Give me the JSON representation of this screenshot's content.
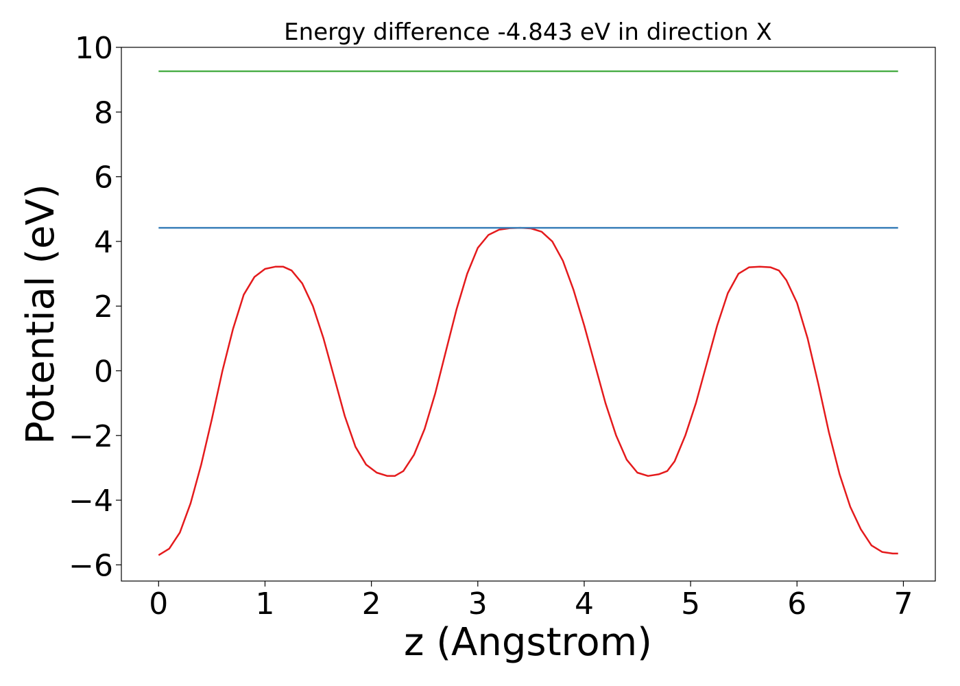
{
  "chart_data": {
    "type": "line",
    "title": "Energy difference -4.843 eV in direction X",
    "xlabel": "z (Angstrom)",
    "ylabel": "Potential (eV)",
    "xlim": [
      -0.35,
      7.3
    ],
    "ylim": [
      -6.5,
      10
    ],
    "x_ticks": [
      0,
      1,
      2,
      3,
      4,
      5,
      6,
      7
    ],
    "x_tick_labels": [
      "0",
      "1",
      "2",
      "3",
      "4",
      "5",
      "6",
      "7"
    ],
    "y_ticks": [
      -6,
      -4,
      -2,
      0,
      2,
      4,
      6,
      8,
      10
    ],
    "y_tick_labels": [
      "−6",
      "−4",
      "−2",
      "0",
      "2",
      "4",
      "6",
      "8",
      "10"
    ],
    "grid": false,
    "series": [
      {
        "color": "#e41a1c",
        "x": [
          0.0,
          0.1,
          0.2,
          0.3,
          0.4,
          0.5,
          0.6,
          0.7,
          0.8,
          0.9,
          1.0,
          1.1,
          1.17,
          1.25,
          1.35,
          1.45,
          1.55,
          1.65,
          1.75,
          1.85,
          1.95,
          2.05,
          2.15,
          2.22,
          2.3,
          2.4,
          2.5,
          2.6,
          2.7,
          2.8,
          2.9,
          3.0,
          3.1,
          3.2,
          3.3,
          3.4,
          3.5,
          3.6,
          3.7,
          3.8,
          3.9,
          4.0,
          4.1,
          4.2,
          4.3,
          4.4,
          4.5,
          4.6,
          4.7,
          4.78,
          4.85,
          4.95,
          5.05,
          5.15,
          5.25,
          5.35,
          5.45,
          5.55,
          5.65,
          5.75,
          5.83,
          5.9,
          6.0,
          6.1,
          6.2,
          6.3,
          6.4,
          6.5,
          6.6,
          6.7,
          6.8,
          6.9,
          6.95
        ],
        "y": [
          -5.7,
          -5.5,
          -5.0,
          -4.1,
          -2.9,
          -1.5,
          0.0,
          1.3,
          2.35,
          2.9,
          3.15,
          3.22,
          3.22,
          3.1,
          2.7,
          2.0,
          1.0,
          -0.2,
          -1.4,
          -2.35,
          -2.9,
          -3.15,
          -3.25,
          -3.25,
          -3.1,
          -2.6,
          -1.8,
          -0.7,
          0.6,
          1.9,
          3.0,
          3.8,
          4.2,
          4.36,
          4.41,
          4.42,
          4.4,
          4.3,
          4.0,
          3.4,
          2.5,
          1.4,
          0.2,
          -1.0,
          -2.0,
          -2.75,
          -3.15,
          -3.25,
          -3.2,
          -3.1,
          -2.8,
          -2.0,
          -1.0,
          0.2,
          1.4,
          2.4,
          3.0,
          3.2,
          3.22,
          3.2,
          3.1,
          2.8,
          2.1,
          1.0,
          -0.4,
          -1.9,
          -3.2,
          -4.2,
          -4.9,
          -5.4,
          -5.6,
          -5.65,
          -5.65
        ]
      },
      {
        "color": "#377eb8",
        "x": [
          0.0,
          6.95
        ],
        "y": [
          4.42,
          4.42
        ]
      },
      {
        "color": "#4daf4a",
        "x": [
          0.0,
          6.95
        ],
        "y": [
          9.26,
          9.26
        ]
      }
    ]
  }
}
